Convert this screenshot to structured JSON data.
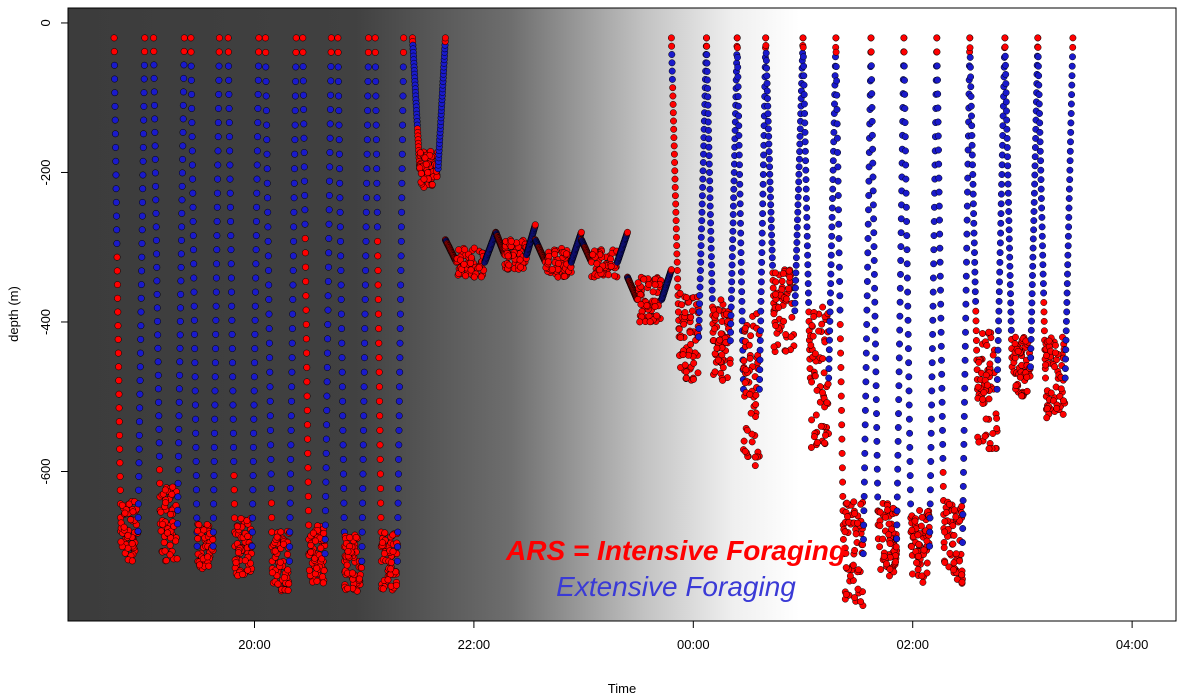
{
  "chart_data": {
    "type": "scatter",
    "title": "",
    "xlabel": "Time",
    "ylabel": "depth (m)",
    "x_ticks": [
      "20:00",
      "22:00",
      "00:00",
      "02:00",
      "04:00"
    ],
    "x_tick_hours": [
      20,
      22,
      24,
      26,
      28
    ],
    "xlim_hours": [
      18.3,
      28.4
    ],
    "y_ticks": [
      0,
      -200,
      -400,
      -600
    ],
    "ylim": [
      -800,
      20
    ],
    "grid": false,
    "background": "night-to-day gradient (dark grey to white)",
    "colors": {
      "ars": "#ff0000",
      "extensive": "#1a1acc",
      "outline": "#000000"
    },
    "legend": [
      {
        "label": "ARS = Intensive Foraging",
        "color": "#ff0000"
      },
      {
        "label": "Extensive Foraging",
        "color": "#3a3ad6"
      }
    ],
    "dives": [
      {
        "start": 18.72,
        "end": 19.0,
        "bottom": [
          -720,
          -640
        ],
        "ars_from": -310
      },
      {
        "start": 19.08,
        "end": 19.36,
        "bottom": [
          -720,
          -620
        ],
        "ars_from": -580
      },
      {
        "start": 19.42,
        "end": 19.68,
        "bottom": [
          -730,
          -670
        ],
        "ars_from": null
      },
      {
        "start": 19.76,
        "end": 20.04,
        "bottom": [
          -740,
          -660
        ],
        "ars_from": -590
      },
      {
        "start": 20.1,
        "end": 20.38,
        "bottom": [
          -760,
          -680
        ],
        "ars_from": -640
      },
      {
        "start": 20.44,
        "end": 20.7,
        "bottom": [
          -750,
          -670
        ],
        "ars_from": -280
      },
      {
        "start": 20.76,
        "end": 21.04,
        "bottom": [
          -760,
          -680
        ],
        "ars_from": -700
      },
      {
        "start": 21.1,
        "end": 21.36,
        "bottom": [
          -760,
          -680
        ],
        "ars_from": -280
      },
      {
        "start": 21.44,
        "end": 21.74,
        "bottom": [
          -220,
          -170
        ],
        "ars_from": -140
      },
      {
        "start": 21.74,
        "end": 22.2,
        "bottom": [
          -340,
          -300
        ],
        "ars_from": -190
      },
      {
        "start": 22.2,
        "end": 22.56,
        "bottom": [
          -330,
          -290
        ],
        "ars_from": -240
      },
      {
        "start": 22.56,
        "end": 22.98,
        "bottom": [
          -340,
          -300
        ],
        "ars_from": -300
      },
      {
        "start": 22.98,
        "end": 23.4,
        "bottom": [
          -340,
          -300
        ],
        "ars_from": -300
      },
      {
        "start": 23.4,
        "end": 23.8,
        "bottom": [
          -400,
          -340
        ],
        "ars_from": -300
      },
      {
        "start": 23.8,
        "end": 24.12,
        "bottom": [
          -480,
          -360
        ],
        "ars_from": -20
      },
      {
        "start": 24.12,
        "end": 24.4,
        "bottom": [
          -480,
          -370
        ],
        "ars_from": -380
      },
      {
        "start": 24.4,
        "end": 24.66,
        "bottom": [
          -600,
          -380
        ],
        "ars_from": -540
      },
      {
        "start": 24.66,
        "end": 25.0,
        "bottom": [
          -440,
          -330
        ],
        "ars_from": -330
      },
      {
        "start": 25.0,
        "end": 25.3,
        "bottom": [
          -570,
          -380
        ],
        "ars_from": -380
      },
      {
        "start": 25.3,
        "end": 25.62,
        "bottom": [
          -780,
          -640
        ],
        "ars_from": -390
      },
      {
        "start": 25.62,
        "end": 25.92,
        "bottom": [
          -740,
          -640
        ],
        "ars_from": -640
      },
      {
        "start": 25.92,
        "end": 26.22,
        "bottom": [
          -750,
          -650
        ],
        "ars_from": -650
      },
      {
        "start": 26.22,
        "end": 26.52,
        "bottom": [
          -750,
          -640
        ],
        "ars_from": -600
      },
      {
        "start": 26.52,
        "end": 26.84,
        "bottom": [
          -570,
          -410
        ],
        "ars_from": -380
      },
      {
        "start": 26.84,
        "end": 27.14,
        "bottom": [
          -500,
          -420
        ],
        "ars_from": -420
      },
      {
        "start": 27.14,
        "end": 27.46,
        "bottom": [
          -530,
          -420
        ],
        "ars_from": -370
      }
    ]
  }
}
